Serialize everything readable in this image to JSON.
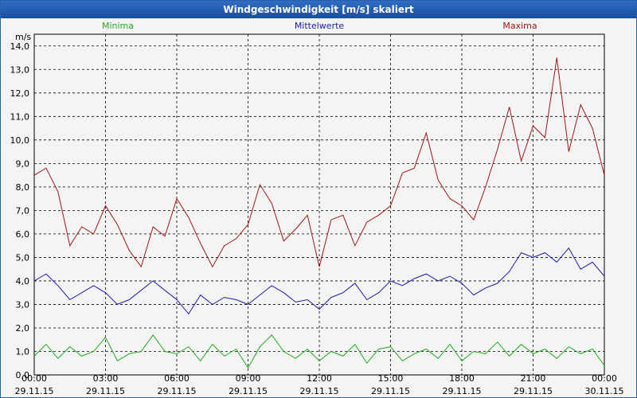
{
  "window": {
    "title": "Windgeschwindigkeit [m/s] skaliert"
  },
  "chart_data": {
    "type": "line",
    "title": "Windgeschwindigkeit [m/s] skaliert",
    "ylabel": "m/s",
    "xlabel": "",
    "ylim": [
      0,
      14.5
    ],
    "xlim": [
      0,
      24
    ],
    "grid": true,
    "y_ticks": [
      "0,0",
      "1,0",
      "2,0",
      "3,0",
      "4,0",
      "5,0",
      "6,0",
      "7,0",
      "8,0",
      "9,0",
      "10,0",
      "11,0",
      "12,0",
      "13,0",
      "14,0"
    ],
    "x_ticks": [
      {
        "time": "00:00",
        "date": "29.11.15"
      },
      {
        "time": "03:00",
        "date": "29.11.15"
      },
      {
        "time": "06:00",
        "date": "29.11.15"
      },
      {
        "time": "09:00",
        "date": "29.11.15"
      },
      {
        "time": "12:00",
        "date": "29.11.15"
      },
      {
        "time": "15:00",
        "date": "29.11.15"
      },
      {
        "time": "18:00",
        "date": "29.11.15"
      },
      {
        "time": "21:00",
        "date": "29.11.15"
      },
      {
        "time": "00:00",
        "date": "30.11.15"
      }
    ],
    "x_hours": [
      0,
      0.5,
      1,
      1.5,
      2,
      2.5,
      3,
      3.5,
      4,
      4.5,
      5,
      5.5,
      6,
      6.5,
      7,
      7.5,
      8,
      8.5,
      9,
      9.5,
      10,
      10.5,
      11,
      11.5,
      12,
      12.5,
      13,
      13.5,
      14,
      14.5,
      15,
      15.5,
      16,
      16.5,
      17,
      17.5,
      18,
      18.5,
      19,
      19.5,
      20,
      20.5,
      21,
      21.5,
      22,
      22.5,
      23,
      23.5,
      24
    ],
    "series": [
      {
        "name": "Minima",
        "color": "#22aa22",
        "legend_position": "left",
        "values": [
          0.8,
          1.3,
          0.7,
          1.2,
          0.8,
          1.0,
          1.6,
          0.6,
          0.9,
          1.0,
          1.7,
          1.0,
          0.9,
          1.2,
          0.6,
          1.3,
          0.8,
          1.1,
          0.3,
          1.2,
          1.7,
          1.0,
          0.7,
          1.1,
          0.6,
          1.0,
          0.8,
          1.3,
          0.5,
          1.1,
          1.2,
          0.6,
          0.9,
          1.1,
          0.7,
          1.3,
          0.6,
          1.0,
          0.9,
          1.4,
          0.8,
          1.3,
          0.9,
          1.1,
          0.7,
          1.2,
          0.9,
          1.1,
          0.4
        ]
      },
      {
        "name": "Mittelwerte",
        "color": "#1b1bb0",
        "legend_position": "center",
        "values": [
          4.0,
          4.3,
          3.8,
          3.2,
          3.5,
          3.8,
          3.5,
          3.0,
          3.2,
          3.6,
          4.0,
          3.6,
          3.2,
          2.6,
          3.4,
          3.0,
          3.3,
          3.2,
          3.0,
          3.4,
          3.8,
          3.5,
          3.1,
          3.2,
          2.8,
          3.3,
          3.5,
          3.9,
          3.2,
          3.5,
          4.0,
          3.8,
          4.1,
          4.3,
          4.0,
          4.2,
          3.9,
          3.4,
          3.7,
          3.9,
          4.4,
          5.2,
          5.0,
          5.2,
          4.8,
          5.4,
          4.5,
          4.8,
          4.2
        ]
      },
      {
        "name": "Maxima",
        "color": "#a31515",
        "legend_position": "right",
        "values": [
          8.5,
          8.8,
          7.8,
          5.5,
          6.3,
          6.0,
          7.2,
          6.4,
          5.3,
          4.6,
          6.3,
          5.9,
          7.5,
          6.7,
          5.6,
          4.6,
          5.5,
          5.8,
          6.4,
          8.1,
          7.3,
          5.7,
          6.2,
          6.8,
          4.6,
          6.6,
          6.8,
          5.5,
          6.5,
          6.8,
          7.2,
          8.6,
          8.8,
          10.3,
          8.3,
          7.5,
          7.2,
          6.6,
          8.0,
          9.6,
          11.4,
          9.1,
          10.6,
          10.1,
          13.5,
          9.5,
          11.5,
          10.5,
          8.5
        ]
      }
    ]
  }
}
